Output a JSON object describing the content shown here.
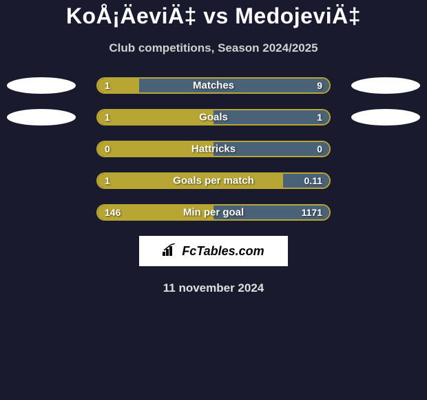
{
  "title": "KoÅ¡ÄeviÄ‡ vs MedojeviÄ‡",
  "subtitle": "Club competitions, Season 2024/2025",
  "date": "11 november 2024",
  "logo_text": "FcTables.com",
  "colors": {
    "background": "#1a1a2e",
    "left_bar": "#b8a634",
    "right_bar": "#4a6278",
    "border": "#b8a634",
    "ellipse": "#ffffff"
  },
  "rows": [
    {
      "label": "Matches",
      "left_value": "1",
      "right_value": "9",
      "left_pct": 18,
      "right_pct": 82,
      "show_left_ellipse": true,
      "show_right_ellipse": true
    },
    {
      "label": "Goals",
      "left_value": "1",
      "right_value": "1",
      "left_pct": 50,
      "right_pct": 50,
      "show_left_ellipse": true,
      "show_right_ellipse": true
    },
    {
      "label": "Hattricks",
      "left_value": "0",
      "right_value": "0",
      "left_pct": 50,
      "right_pct": 50,
      "show_left_ellipse": false,
      "show_right_ellipse": false
    },
    {
      "label": "Goals per match",
      "left_value": "1",
      "right_value": "0.11",
      "left_pct": 80,
      "right_pct": 20,
      "show_left_ellipse": false,
      "show_right_ellipse": false
    },
    {
      "label": "Min per goal",
      "left_value": "146",
      "right_value": "1171",
      "left_pct": 50,
      "right_pct": 50,
      "show_left_ellipse": false,
      "show_right_ellipse": false
    }
  ]
}
